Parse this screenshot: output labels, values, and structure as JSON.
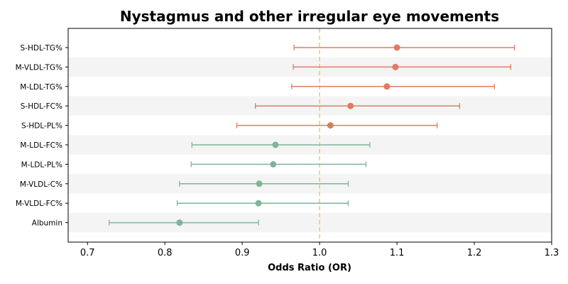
{
  "chart_data": {
    "type": "forest",
    "title": "Nystagmus and other irregular eye movements",
    "xlabel": "Odds Ratio (OR)",
    "xlim": [
      0.675,
      1.3
    ],
    "xticks": [
      "0.7",
      "0.8",
      "0.9",
      "1.0",
      "1.1",
      "1.2",
      "1.3"
    ],
    "reference_line": 1.0,
    "band_color": "#f4f4f4",
    "colors": {
      "above": "#e07b60",
      "below": "#7fb59a",
      "reference": "#f2c27d"
    },
    "rows": [
      {
        "label": "S-HDL-TG%",
        "or": 1.1,
        "lower": 0.967,
        "upper": 1.252
      },
      {
        "label": "M-VLDL-TG%",
        "or": 1.098,
        "lower": 0.966,
        "upper": 1.247
      },
      {
        "label": "M-LDL-TG%",
        "or": 1.087,
        "lower": 0.964,
        "upper": 1.226
      },
      {
        "label": "S-HDL-FC%",
        "or": 1.04,
        "lower": 0.917,
        "upper": 1.181
      },
      {
        "label": "S-HDL-PL%",
        "or": 1.014,
        "lower": 0.893,
        "upper": 1.152
      },
      {
        "label": "M-LDL-FC%",
        "or": 0.943,
        "lower": 0.835,
        "upper": 1.065
      },
      {
        "label": "M-LDL-PL%",
        "or": 0.94,
        "lower": 0.834,
        "upper": 1.06
      },
      {
        "label": "M-VLDL-C%",
        "or": 0.922,
        "lower": 0.819,
        "upper": 1.037
      },
      {
        "label": "M-VLDL-FC%",
        "or": 0.921,
        "lower": 0.816,
        "upper": 1.037
      },
      {
        "label": "Albumin",
        "or": 0.819,
        "lower": 0.728,
        "upper": 0.921
      }
    ]
  }
}
